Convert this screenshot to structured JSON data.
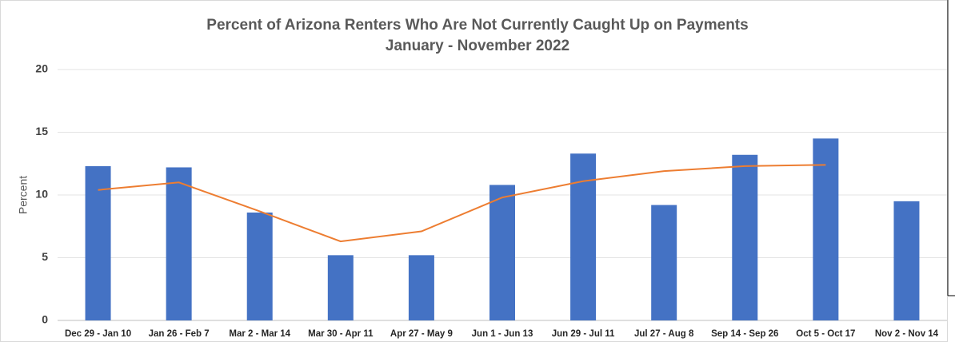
{
  "chart_data": {
    "type": "bar",
    "title": "Percent of Arizona Renters Who Are Not Currently Caught Up on Payments",
    "subtitle": "January - November 2022",
    "y_label": "Percent",
    "categories": [
      "Dec 29 - Jan 10",
      "Jan 26 - Feb 7",
      "Mar 2 - Mar 14",
      "Mar 30 - Apr 11",
      "Apr 27 - May 9",
      "Jun 1 - Jun 13",
      "Jun 29 - Jul 11",
      "Jul 27 - Aug 8",
      "Sep 14 - Sep 26",
      "Oct 5 - Oct 17",
      "Nov 2 - Nov 14"
    ],
    "series": [
      {
        "type": "bar",
        "color": "#4472c4",
        "values": [
          12.3,
          12.2,
          8.6,
          5.2,
          5.2,
          10.8,
          13.3,
          9.2,
          13.2,
          14.5,
          9.5
        ]
      },
      {
        "type": "line",
        "color": "#ed7d31",
        "values": [
          10.4,
          11.0,
          8.7,
          6.3,
          7.1,
          9.8,
          11.1,
          11.9,
          12.3,
          12.4,
          null
        ]
      }
    ],
    "ylim": [
      0,
      20
    ],
    "yticks": [
      0,
      5,
      10,
      15,
      20
    ],
    "grid": true
  }
}
